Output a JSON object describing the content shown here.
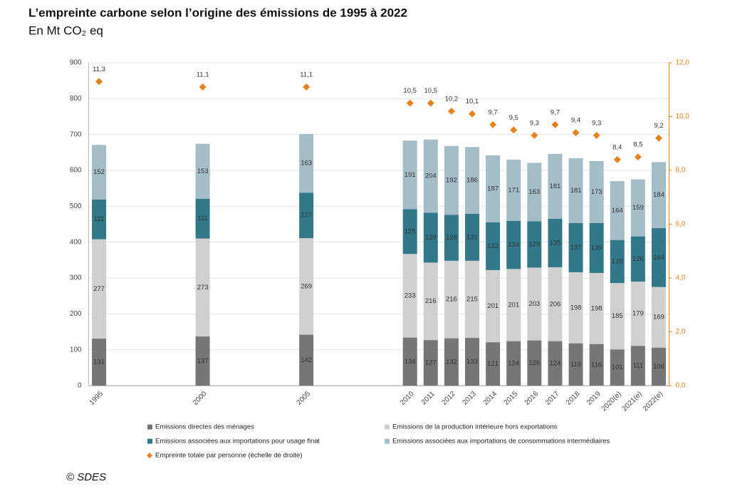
{
  "chart_data": {
    "type": "bar",
    "title": "L’empreinte carbone selon l’origine des émissions de 1995 à 2022",
    "subtitle": "En Mt CO₂ eq",
    "source": "© SDES",
    "stacked": true,
    "categories": [
      "1995",
      null,
      null,
      null,
      null,
      "2000",
      null,
      null,
      null,
      null,
      "2005",
      null,
      null,
      null,
      null,
      "2010",
      "2011",
      "2012",
      "2013",
      "2014",
      "2015",
      "2016",
      "2017",
      "2018",
      "2019",
      "2020(e)",
      "2021(e)",
      "2022(e)"
    ],
    "series": [
      {
        "name": "Emissions directes des ménages",
        "color": "#767676",
        "values": [
          131,
          null,
          null,
          null,
          null,
          137,
          null,
          null,
          null,
          null,
          142,
          null,
          null,
          null,
          null,
          134,
          127,
          132,
          133,
          121,
          124,
          126,
          124,
          118,
          116,
          101,
          111,
          106
        ]
      },
      {
        "name": "Emissions de la production intérieure hors exportations",
        "color": "#d0d0d0",
        "values": [
          277,
          null,
          null,
          null,
          null,
          273,
          null,
          null,
          null,
          null,
          269,
          null,
          null,
          null,
          null,
          233,
          216,
          216,
          215,
          201,
          201,
          203,
          206,
          198,
          198,
          185,
          179,
          169
        ]
      },
      {
        "name": "Emissions associées aux importations pour usage final",
        "color": "#31788a",
        "values": [
          111,
          null,
          null,
          null,
          null,
          111,
          null,
          null,
          null,
          null,
          127,
          null,
          null,
          null,
          null,
          125,
          139,
          128,
          131,
          133,
          134,
          129,
          135,
          137,
          139,
          120,
          126,
          164
        ]
      },
      {
        "name": "Emissions associées aux importations de consommations intermédiaires",
        "color": "#a5bdc7",
        "values": [
          152,
          null,
          null,
          null,
          null,
          153,
          null,
          null,
          null,
          null,
          163,
          null,
          null,
          null,
          null,
          191,
          204,
          192,
          186,
          187,
          171,
          163,
          181,
          181,
          173,
          164,
          159,
          184
        ]
      },
      {
        "name": "Empreinte totale par personne (échelle de droite)",
        "color": "#e8821e",
        "type": "scatter",
        "axis": "y2",
        "values": [
          11.3,
          null,
          null,
          null,
          null,
          11.1,
          null,
          null,
          null,
          null,
          11.1,
          null,
          null,
          null,
          null,
          10.5,
          10.5,
          10.2,
          10.1,
          9.7,
          9.5,
          9.3,
          9.7,
          9.4,
          9.3,
          8.4,
          8.5,
          9.2
        ],
        "value_labels": [
          "11,3",
          null,
          null,
          null,
          null,
          "11,1",
          null,
          null,
          null,
          null,
          "11,1",
          null,
          null,
          null,
          null,
          "10,5",
          "10,5",
          "10,2",
          "10,1",
          "9,7",
          "9,5",
          "9,3",
          "9,7",
          "9,4",
          "9,3",
          "8,4",
          "8,5",
          "9,2"
        ]
      }
    ],
    "ylim": [
      0,
      900
    ],
    "yticks": [
      0,
      100,
      200,
      300,
      400,
      500,
      600,
      700,
      800,
      900
    ],
    "y2lim": [
      0,
      12
    ],
    "y2ticks": [
      {
        "value": 0,
        "label": "0,0"
      },
      {
        "value": 2,
        "label": "2,0"
      },
      {
        "value": 4,
        "label": "4,0"
      },
      {
        "value": 6,
        "label": "6,0"
      },
      {
        "value": 8,
        "label": "8,0"
      },
      {
        "value": 10,
        "label": "10,0"
      },
      {
        "value": 12,
        "label": "12,0"
      }
    ],
    "grid": true,
    "legend": "bottom"
  }
}
